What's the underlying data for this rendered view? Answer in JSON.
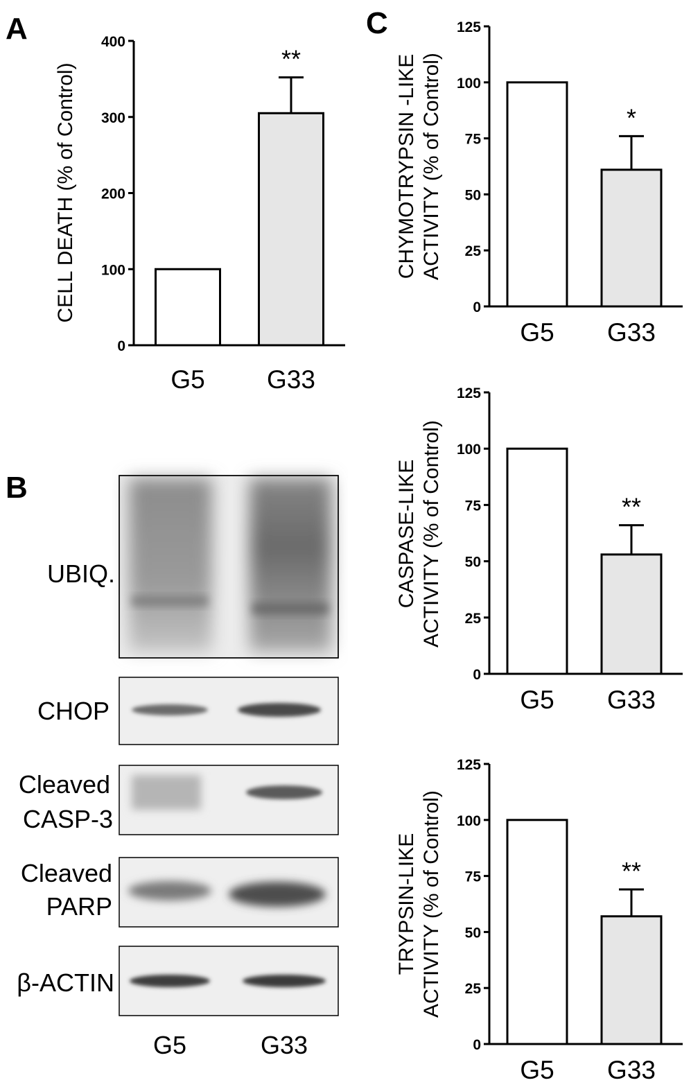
{
  "panels": {
    "a_letter": "A",
    "b_letter": "B",
    "c_letter": "C"
  },
  "chart_data": [
    {
      "id": "cell-death",
      "type": "bar",
      "categories": [
        "G5",
        "G33"
      ],
      "values": [
        100,
        305
      ],
      "errors": [
        0,
        47
      ],
      "significance": [
        "",
        "**"
      ],
      "ylabel": "CELL DEATH (% of Control)",
      "ylim": [
        0,
        400
      ],
      "yticks": [
        0,
        100,
        200,
        300,
        400
      ],
      "bar_colors": [
        "#ffffff",
        "#e6e6e6"
      ]
    },
    {
      "id": "chymotrypsin",
      "type": "bar",
      "categories": [
        "G5",
        "G33"
      ],
      "values": [
        100,
        61
      ],
      "errors": [
        0,
        15
      ],
      "significance": [
        "",
        "*"
      ],
      "ylabel_lines": [
        "CHYMOTRYPSIN -LIKE",
        "ACTIVITY (% of Control)"
      ],
      "ylim": [
        0,
        125
      ],
      "yticks": [
        0,
        25,
        50,
        75,
        100,
        125
      ],
      "bar_colors": [
        "#ffffff",
        "#e6e6e6"
      ]
    },
    {
      "id": "caspase",
      "type": "bar",
      "categories": [
        "G5",
        "G33"
      ],
      "values": [
        100,
        53
      ],
      "errors": [
        0,
        13
      ],
      "significance": [
        "",
        "**"
      ],
      "ylabel_lines": [
        "CASPASE-LIKE",
        "ACTIVITY (% of Control)"
      ],
      "ylim": [
        0,
        125
      ],
      "yticks": [
        0,
        25,
        50,
        75,
        100,
        125
      ],
      "bar_colors": [
        "#ffffff",
        "#e6e6e6"
      ]
    },
    {
      "id": "trypsin",
      "type": "bar",
      "categories": [
        "G5",
        "G33"
      ],
      "values": [
        100,
        57
      ],
      "errors": [
        0,
        12
      ],
      "significance": [
        "",
        "**"
      ],
      "ylabel_lines": [
        "TRYPSIN-LIKE",
        "ACTIVITY (% of Control)"
      ],
      "ylim": [
        0,
        125
      ],
      "yticks": [
        0,
        25,
        50,
        75,
        100,
        125
      ],
      "bar_colors": [
        "#ffffff",
        "#e6e6e6"
      ]
    }
  ],
  "western_blot": {
    "lanes": [
      "G5",
      "G33"
    ],
    "bands": [
      {
        "id": "ubiq",
        "lines": [
          "UBIQ."
        ]
      },
      {
        "id": "chop",
        "lines": [
          "CHOP"
        ]
      },
      {
        "id": "casp3",
        "lines": [
          "Cleaved",
          "CASP-3"
        ]
      },
      {
        "id": "parp",
        "lines": [
          "Cleaved",
          "PARP"
        ]
      },
      {
        "id": "actin",
        "lines": [
          "β-ACTIN"
        ]
      }
    ]
  }
}
